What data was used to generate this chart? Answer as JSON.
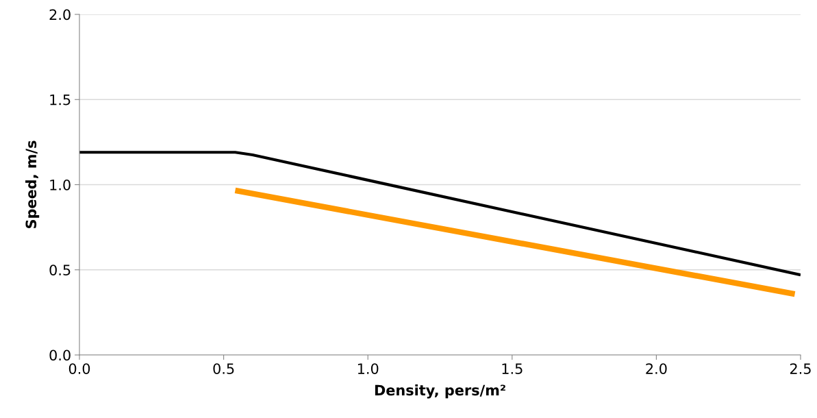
{
  "chart_data": {
    "type": "line",
    "xlabel": "Density, pers/m²",
    "ylabel": "Speed, m/s",
    "series": [
      {
        "color": "#000000",
        "x": [
          0,
          0.54,
          0.6,
          2.5
        ],
        "values": [
          1.19,
          1.19,
          1.175,
          0.47
        ]
      },
      {
        "color": "#ff9900",
        "x": [
          0.54,
          2.48
        ],
        "values": [
          0.966,
          0.358
        ]
      }
    ],
    "xlim": [
      0,
      2.5
    ],
    "xticks": [
      {
        "value": 0,
        "label": "0.0"
      },
      {
        "value": 0.5,
        "label": "0.5"
      },
      {
        "value": 1,
        "label": "1.0"
      },
      {
        "value": 1.5,
        "label": "1.5"
      },
      {
        "value": 2,
        "label": "2.0"
      },
      {
        "value": 2.5,
        "label": "2.5"
      }
    ],
    "ylim": [
      0,
      2
    ],
    "yticks": [
      {
        "value": 0,
        "label": "0.0"
      },
      {
        "value": 0.5,
        "label": "0.5"
      },
      {
        "value": 1,
        "label": "1.0"
      },
      {
        "value": 1.5,
        "label": "1.5"
      },
      {
        "value": 2,
        "label": "2.0"
      }
    ],
    "grid": "y"
  }
}
